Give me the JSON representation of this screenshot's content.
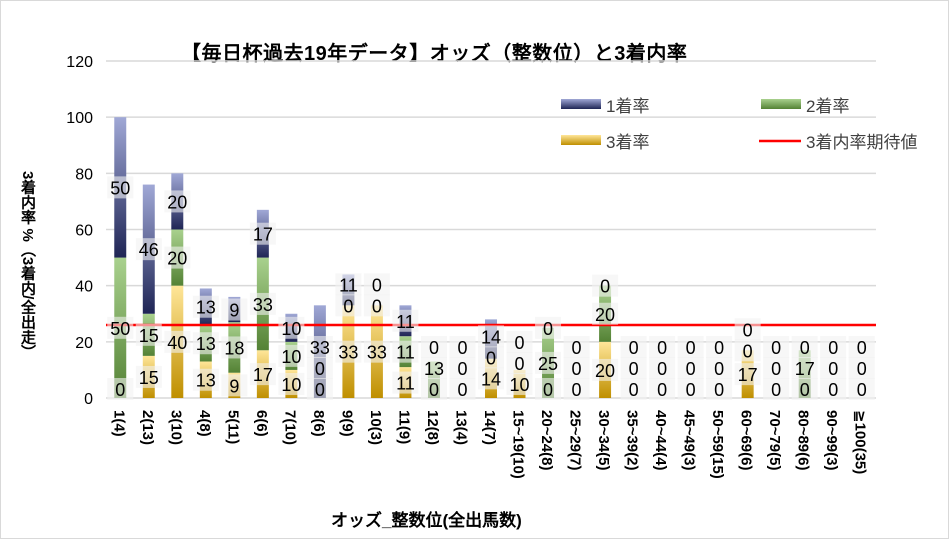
{
  "chart_data": {
    "type": "bar",
    "stacked": true,
    "title": "【毎日杯過去19年データ】オッズ（整数位）と3着内率",
    "xlabel": "オッズ_整数位(全出馬数)",
    "ylabel": "3着内率 %（3着内/全出走）",
    "ylim": [
      0,
      120
    ],
    "yticks": [
      "0",
      "20",
      "40",
      "60",
      "80",
      "100",
      "120"
    ],
    "grid": true,
    "legend_position": "top-right",
    "categories": [
      "1(4)",
      "2(13)",
      "3(10)",
      "4(8)",
      "5(11)",
      "6(6)",
      "7(10)",
      "8(6)",
      "9(9)",
      "10(3)",
      "11(9)",
      "12(8)",
      "13(4)",
      "14(7)",
      "15~19(10)",
      "20~24(8)",
      "25~29(7)",
      "30~34(5)",
      "35~39(2)",
      "40~44(4)",
      "45~49(3)",
      "50~59(15)",
      "60~69(6)",
      "70~79(5)",
      "80~89(6)",
      "90~99(3)",
      "≧100(35)"
    ],
    "series": [
      {
        "name": "3着率",
        "color": "#c9960e",
        "values": [
          0,
          15,
          40,
          13,
          9,
          17,
          10,
          0,
          33,
          33,
          11,
          0,
          0,
          14,
          10,
          0,
          0,
          20,
          0,
          0,
          0,
          0,
          17,
          0,
          0,
          0,
          0
        ]
      },
      {
        "name": "2着率",
        "color": "#548235",
        "values": [
          50,
          15,
          20,
          13,
          18,
          33,
          10,
          0,
          0,
          0,
          11,
          13,
          0,
          0,
          0,
          25,
          0,
          20,
          0,
          0,
          0,
          0,
          0,
          0,
          17,
          0,
          0
        ]
      },
      {
        "name": "1着率",
        "color": "#2f3a7a",
        "values": [
          50,
          46,
          20,
          13,
          9,
          17,
          10,
          33,
          11,
          0,
          11,
          0,
          0,
          14,
          0,
          0,
          0,
          0,
          0,
          0,
          0,
          0,
          0,
          0,
          0,
          0,
          0
        ]
      }
    ],
    "reference_line": {
      "name": "3着内率期待値",
      "value": 26,
      "color": "#ff0000"
    }
  }
}
